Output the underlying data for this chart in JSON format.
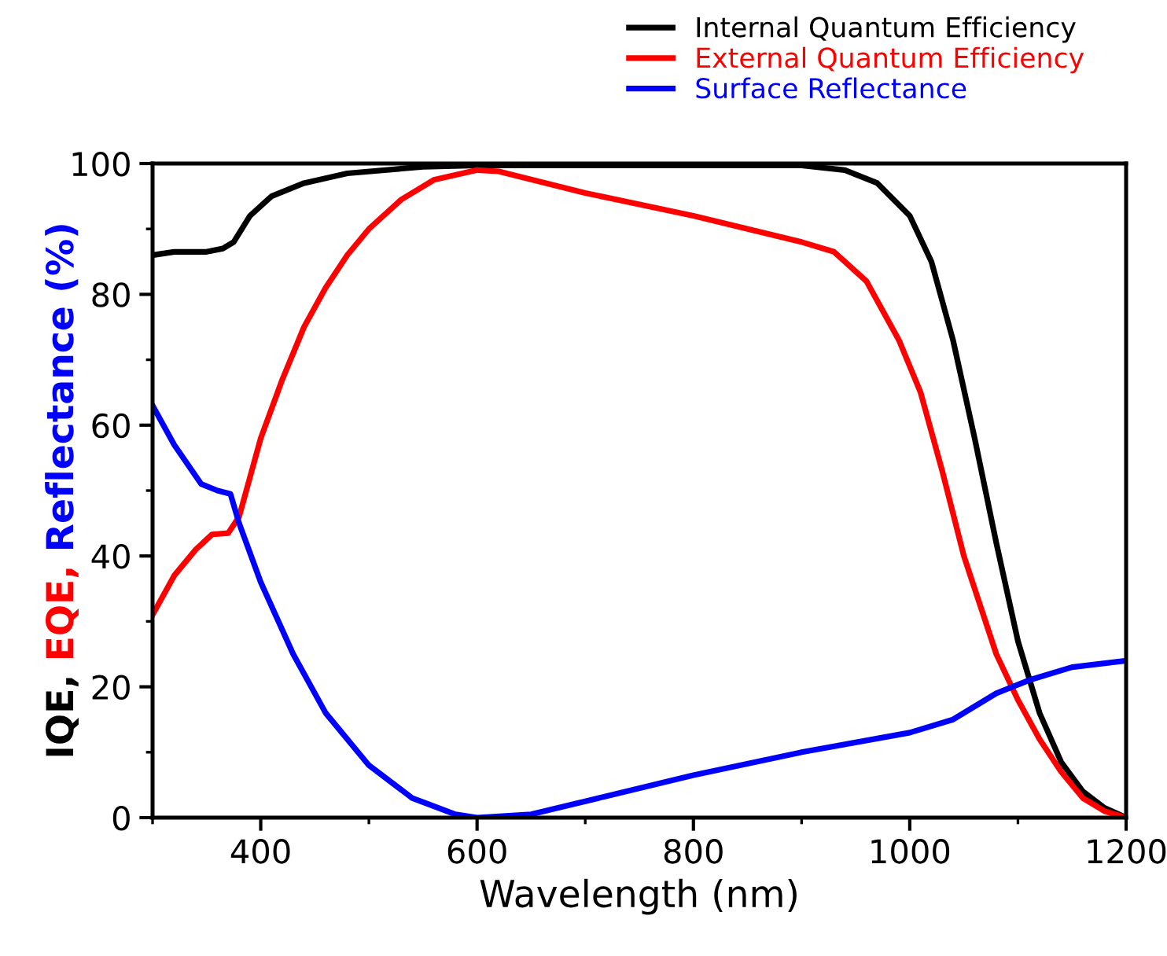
{
  "chart_data": {
    "type": "line",
    "xlabel": "Wavelength (nm)",
    "ylabel": "IQE, EQE, Reflectance (%)",
    "xlim": [
      300,
      1200
    ],
    "ylim": [
      0,
      100
    ],
    "xticks": [
      {
        "value": 300,
        "label": null
      },
      400,
      {
        "value": 500,
        "label": null
      },
      600,
      {
        "value": 700,
        "label": null
      },
      800,
      {
        "value": 900,
        "label": null
      },
      1000,
      {
        "value": 1100,
        "label": null
      },
      1200
    ],
    "yticks": [
      0,
      {
        "value": 10,
        "label": null
      },
      20,
      {
        "value": 30,
        "label": null
      },
      40,
      {
        "value": 50,
        "label": null
      },
      60,
      {
        "value": 70,
        "label": null
      },
      80,
      {
        "value": 90,
        "label": null
      },
      100
    ],
    "grid": false,
    "legend": "top right",
    "marker": "none",
    "line_style": "solid",
    "series": [
      {
        "name": "Internal Quantum Efficiency",
        "color": "#000000",
        "x": [
          300,
          320,
          350,
          365,
          375,
          390,
          410,
          440,
          480,
          550,
          600,
          900,
          940,
          970,
          1000,
          1020,
          1040,
          1060,
          1080,
          1100,
          1120,
          1140,
          1160,
          1180,
          1200
        ],
        "values": [
          86,
          86.5,
          86.5,
          87,
          88,
          92,
          95,
          97,
          98.5,
          99.5,
          99.7,
          99.7,
          99,
          97,
          92,
          85,
          73,
          58,
          42,
          27,
          16,
          8.5,
          4,
          1.5,
          0
        ]
      },
      {
        "name": "External Quantum Efficiency",
        "color": "#ff0000",
        "x": [
          300,
          320,
          340,
          355,
          370,
          380,
          390,
          400,
          420,
          440,
          460,
          480,
          500,
          530,
          560,
          600,
          620,
          700,
          800,
          900,
          930,
          960,
          990,
          1010,
          1030,
          1050,
          1060,
          1080,
          1100,
          1120,
          1140,
          1160,
          1180,
          1200
        ],
        "values": [
          31,
          37,
          41,
          43.3,
          43.5,
          46,
          52,
          58,
          67,
          75,
          81,
          86,
          90,
          94.5,
          97.5,
          99,
          98.8,
          95.5,
          92,
          88,
          86.5,
          82,
          73,
          65,
          53,
          40,
          35,
          25,
          18,
          12,
          7,
          3,
          1,
          0
        ]
      },
      {
        "name": "Surface Reflectance",
        "color": "#0000ff",
        "x": [
          300,
          320,
          345,
          360,
          372,
          380,
          400,
          430,
          460,
          500,
          540,
          580,
          600,
          650,
          700,
          800,
          900,
          1000,
          1040,
          1080,
          1110,
          1150,
          1200
        ],
        "values": [
          63,
          57,
          51,
          50,
          49.5,
          45,
          36,
          25,
          16,
          8,
          3,
          0.5,
          0,
          0.5,
          2.5,
          6.5,
          10,
          13,
          15,
          19,
          21,
          23,
          24
        ]
      }
    ]
  }
}
